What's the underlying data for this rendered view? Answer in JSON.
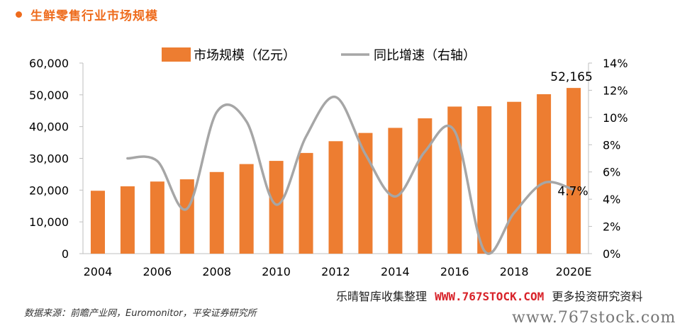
{
  "title": "生鲜零售行业市场规模",
  "source": "数据来源：前瞻产业网，Euromonitor，平安证券研究所",
  "watermark": {
    "line1_left": "乐晴智库收集整理",
    "line1_url": "WWW.767STOCK.COM",
    "line1_right": "更多投资研究资料",
    "line2": "www.767stock.com"
  },
  "colors": {
    "bar": "#ed7d31",
    "line": "#a6a6a6",
    "title": "#ee6b1c"
  },
  "chart_data": {
    "type": "bar",
    "categories": [
      "2004",
      "2005",
      "2006",
      "2007",
      "2008",
      "2009",
      "2010",
      "2011",
      "2012",
      "2013",
      "2014",
      "2015",
      "2016",
      "2017",
      "2018",
      "2019",
      "2020E"
    ],
    "x_tick_labels": [
      "2004",
      "2006",
      "2008",
      "2010",
      "2012",
      "2014",
      "2016",
      "2018",
      "2020E"
    ],
    "series": [
      {
        "name": "市场规模（亿元）",
        "type": "bar",
        "axis": "left",
        "values": [
          19800,
          21200,
          22700,
          23400,
          25700,
          28200,
          29200,
          31700,
          35400,
          38000,
          39600,
          42600,
          46300,
          46400,
          47800,
          50200,
          52165
        ]
      },
      {
        "name": "同比增速（右轴）",
        "type": "line",
        "axis": "right",
        "values": [
          null,
          7.0,
          6.8,
          3.3,
          10.4,
          9.7,
          3.6,
          8.6,
          11.5,
          7.3,
          4.2,
          7.5,
          9.0,
          0.2,
          3.0,
          5.2,
          4.7
        ]
      }
    ],
    "left_axis": {
      "min": 0,
      "max": 60000,
      "step": 10000,
      "tick_labels": [
        "0",
        "10,000",
        "20,000",
        "30,000",
        "40,000",
        "50,000",
        "60,000"
      ]
    },
    "right_axis": {
      "min": 0,
      "max": 14,
      "step": 2,
      "tick_labels": [
        "0%",
        "2%",
        "4%",
        "6%",
        "8%",
        "10%",
        "12%",
        "14%"
      ]
    },
    "annotations": [
      {
        "text": "52,165",
        "category": "2020E",
        "series": "市场规模（亿元）"
      },
      {
        "text": "4.7%",
        "category": "2020E",
        "series": "同比增速（右轴）"
      }
    ],
    "legend_position": "top-center",
    "grid": false
  }
}
